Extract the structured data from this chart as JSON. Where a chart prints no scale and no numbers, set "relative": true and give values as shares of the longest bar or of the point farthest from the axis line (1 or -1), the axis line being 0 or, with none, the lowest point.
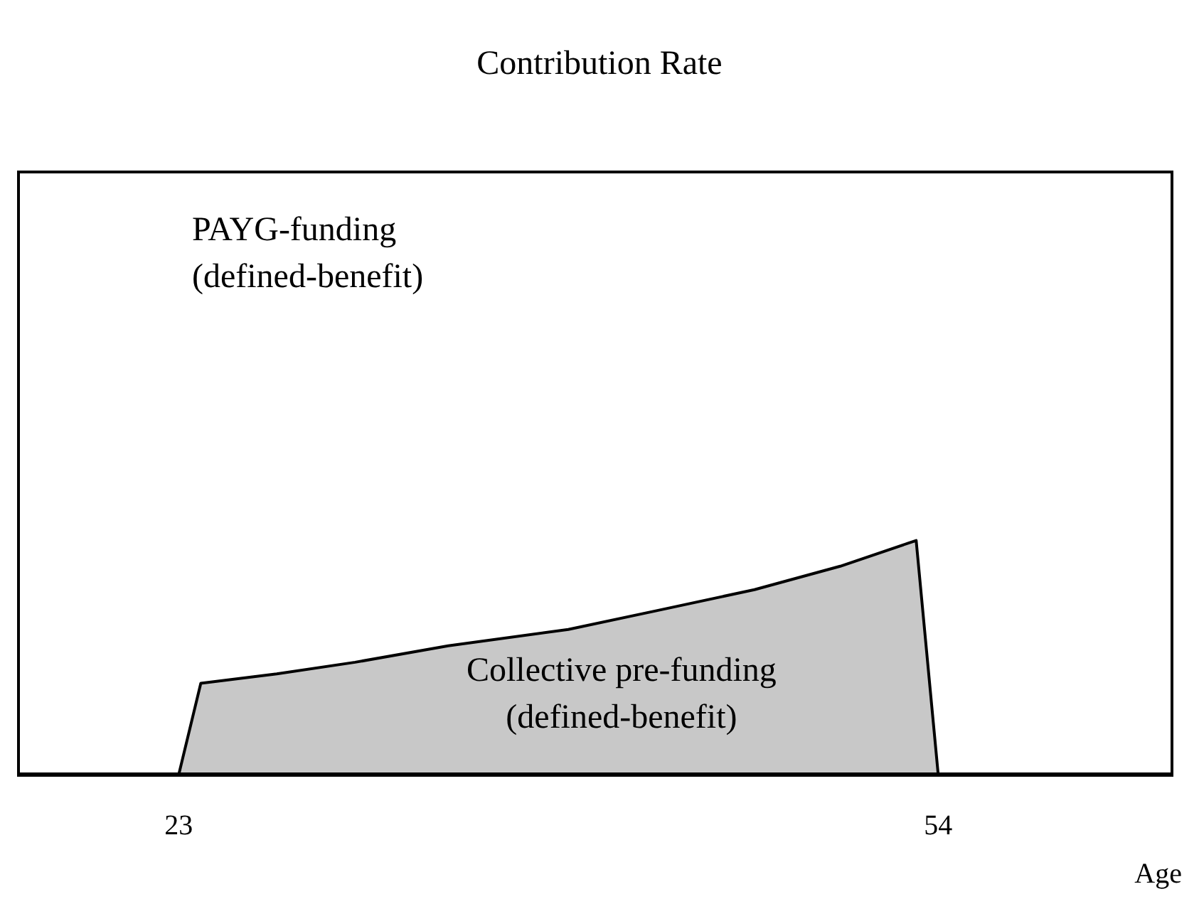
{
  "chart_data": {
    "type": "area",
    "title": "Contribution Rate",
    "xlabel": "Age",
    "relative": true,
    "annotations": [
      "PAYG-funding\n(defined-benefit)",
      "Collective pre-funding\n(defined-benefit)"
    ],
    "x": [
      23,
      23.9,
      27,
      30.2,
      34,
      38.9,
      42.5,
      46.5,
      50,
      53.1,
      54
    ],
    "values": [
      0,
      0.39,
      0.43,
      0.48,
      0.55,
      0.62,
      0.7,
      0.79,
      0.89,
      1,
      0
    ],
    "color": "#c8c8c8",
    "xlim": [
      16.4,
      63.6
    ],
    "xticks": [
      23,
      54
    ]
  }
}
